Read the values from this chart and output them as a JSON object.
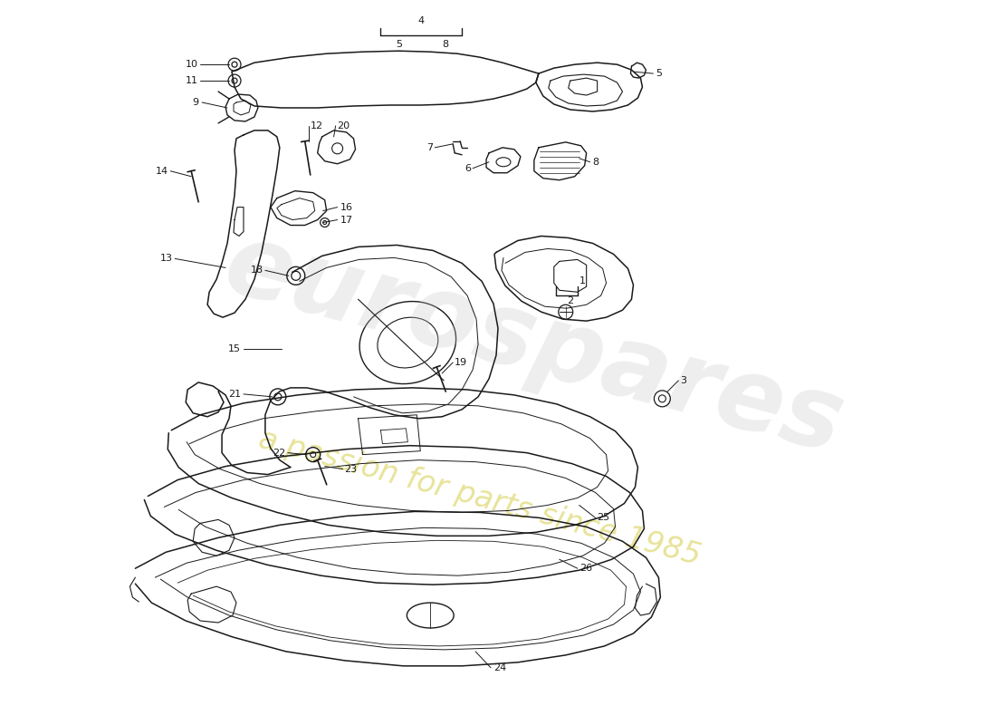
{
  "bg_color": "#ffffff",
  "line_color": "#1a1a1a",
  "watermark1_color": "#c8c8c8",
  "watermark2_color": "#d4cc44",
  "watermark1_alpha": 0.3,
  "watermark2_alpha": 0.55
}
